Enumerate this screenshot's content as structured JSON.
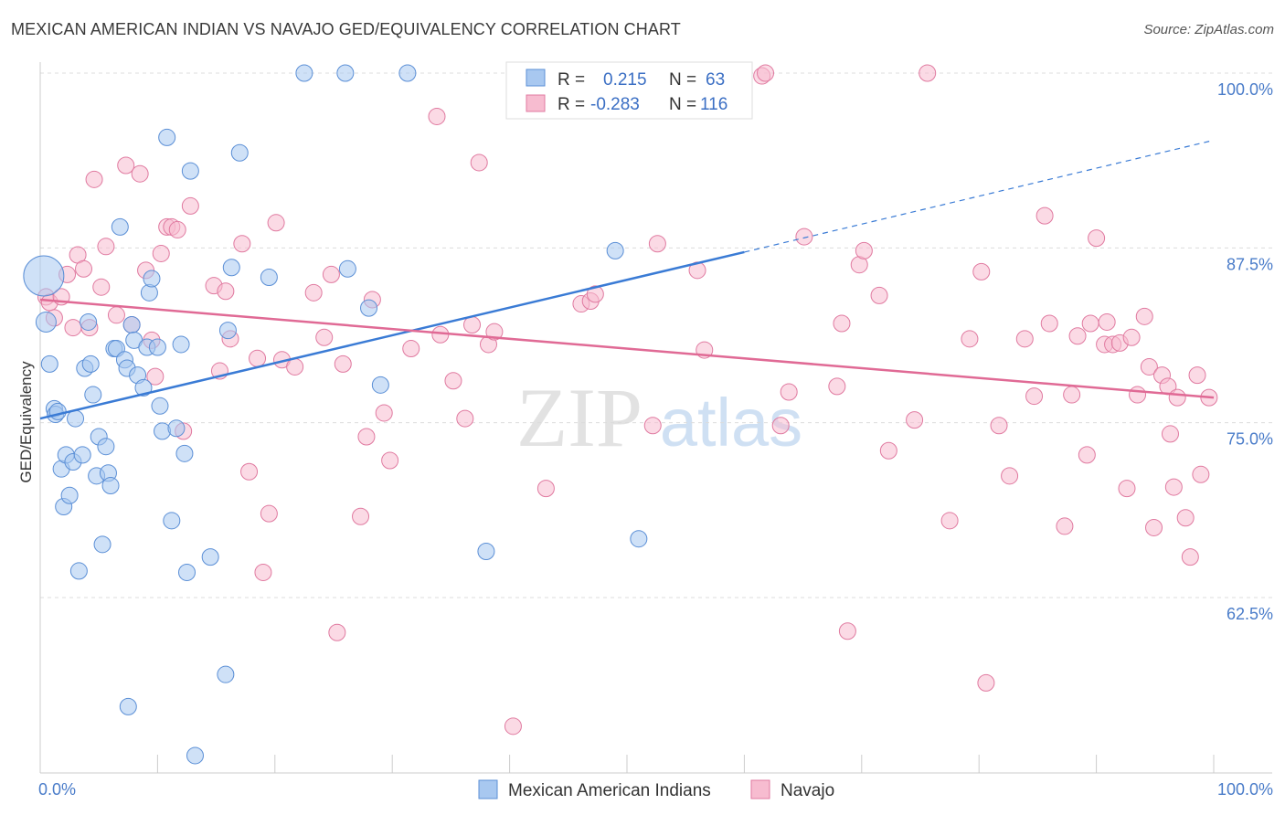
{
  "header": {
    "title": "MEXICAN AMERICAN INDIAN VS NAVAJO GED/EQUIVALENCY CORRELATION CHART",
    "source": "Source: ZipAtlas.com"
  },
  "watermark": {
    "zip": "ZIP",
    "atlas": "atlas"
  },
  "stats_legend": {
    "rows": [
      {
        "r_label": "R =",
        "r_value": "0.215",
        "n_label": "N =",
        "n_value": "63",
        "color": "#a8c8f0",
        "stroke": "#5b8fd6"
      },
      {
        "r_label": "R =",
        "r_value": "-0.283",
        "n_label": "N =",
        "n_value": "116",
        "color": "#f7bcd0",
        "stroke": "#e07aa0"
      }
    ]
  },
  "chart_data": {
    "type": "scatter",
    "title": "MEXICAN AMERICAN INDIAN VS NAVAJO GED/EQUIVALENCY CORRELATION CHART",
    "xlabel": "",
    "ylabel": "GED/Equivalency",
    "xlim": [
      0,
      100
    ],
    "ylim": [
      50,
      102
    ],
    "x_tick_labels": [
      "0.0%",
      "100.0%"
    ],
    "y_ticks": [
      62.5,
      75.0,
      87.5,
      100.0
    ],
    "y_tick_labels": [
      "62.5%",
      "75.0%",
      "87.5%",
      "100.0%"
    ],
    "grid": "horizontal-dashed",
    "legend_position": "bottom-center",
    "series": [
      {
        "name": "Mexican American Indians",
        "color": "#a8c8f0",
        "stroke": "#5b8fd6",
        "line_color": "#3a7bd5",
        "trend": {
          "x_start": 0,
          "y_start": 75.3,
          "x_solid_end": 60,
          "y_solid_end": 87.2,
          "x_dash_end": 100,
          "y_dash_end": 95.2
        },
        "points": [
          [
            0.3,
            85.5
          ],
          [
            0.5,
            82.2
          ],
          [
            0.8,
            79.2
          ],
          [
            1.2,
            76.0
          ],
          [
            1.3,
            75.6
          ],
          [
            1.5,
            75.8
          ],
          [
            1.8,
            71.7
          ],
          [
            2.0,
            69.0
          ],
          [
            2.2,
            72.7
          ],
          [
            2.5,
            69.8
          ],
          [
            2.8,
            72.2
          ],
          [
            3.0,
            75.3
          ],
          [
            3.3,
            64.4
          ],
          [
            3.6,
            72.7
          ],
          [
            3.8,
            78.9
          ],
          [
            4.1,
            82.2
          ],
          [
            4.3,
            79.2
          ],
          [
            4.5,
            77.0
          ],
          [
            4.8,
            71.2
          ],
          [
            5.0,
            74.0
          ],
          [
            5.3,
            66.3
          ],
          [
            5.6,
            73.3
          ],
          [
            5.8,
            71.4
          ],
          [
            6.0,
            70.5
          ],
          [
            6.3,
            80.3
          ],
          [
            6.5,
            80.3
          ],
          [
            6.8,
            89.0
          ],
          [
            7.2,
            79.5
          ],
          [
            7.4,
            78.9
          ],
          [
            7.8,
            82.0
          ],
          [
            8.0,
            80.9
          ],
          [
            8.3,
            78.4
          ],
          [
            8.8,
            77.5
          ],
          [
            9.1,
            80.4
          ],
          [
            9.3,
            84.3
          ],
          [
            9.5,
            85.3
          ],
          [
            10.0,
            80.4
          ],
          [
            10.2,
            76.2
          ],
          [
            10.4,
            74.4
          ],
          [
            10.8,
            95.4
          ],
          [
            11.2,
            68.0
          ],
          [
            11.6,
            74.6
          ],
          [
            12.0,
            80.6
          ],
          [
            12.3,
            72.8
          ],
          [
            12.5,
            64.3
          ],
          [
            12.8,
            93.0
          ],
          [
            13.2,
            51.2
          ],
          [
            14.5,
            65.4
          ],
          [
            15.8,
            57.0
          ],
          [
            16.0,
            81.6
          ],
          [
            16.3,
            86.1
          ],
          [
            17.0,
            94.3
          ],
          [
            19.5,
            85.4
          ],
          [
            22.5,
            100.0
          ],
          [
            26.0,
            100.0
          ],
          [
            26.2,
            86.0
          ],
          [
            28.0,
            83.2
          ],
          [
            29.0,
            77.7
          ],
          [
            31.3,
            100.0
          ],
          [
            38.0,
            65.8
          ],
          [
            49.0,
            87.3
          ],
          [
            51.0,
            66.7
          ],
          [
            7.5,
            54.7
          ]
        ]
      },
      {
        "name": "Navajo",
        "color": "#f7bcd0",
        "stroke": "#e07aa0",
        "line_color": "#e06a95",
        "trend": {
          "x_start": 0,
          "y_start": 83.8,
          "x_end": 100,
          "y_end": 76.8
        },
        "points": [
          [
            0.5,
            84.0
          ],
          [
            0.8,
            83.6
          ],
          [
            1.2,
            82.5
          ],
          [
            1.8,
            84.0
          ],
          [
            2.3,
            85.6
          ],
          [
            2.8,
            81.8
          ],
          [
            3.2,
            87.0
          ],
          [
            3.7,
            86.0
          ],
          [
            4.2,
            81.8
          ],
          [
            4.6,
            92.4
          ],
          [
            5.2,
            84.7
          ],
          [
            5.6,
            87.6
          ],
          [
            6.5,
            82.7
          ],
          [
            7.3,
            93.4
          ],
          [
            7.8,
            82.0
          ],
          [
            8.5,
            92.8
          ],
          [
            9.0,
            85.9
          ],
          [
            9.5,
            80.9
          ],
          [
            9.8,
            78.3
          ],
          [
            10.3,
            87.1
          ],
          [
            10.8,
            89.0
          ],
          [
            11.2,
            89.0
          ],
          [
            11.7,
            88.8
          ],
          [
            12.2,
            74.4
          ],
          [
            12.8,
            90.5
          ],
          [
            14.8,
            84.8
          ],
          [
            15.3,
            78.7
          ],
          [
            15.8,
            84.4
          ],
          [
            16.2,
            81.0
          ],
          [
            17.2,
            87.8
          ],
          [
            17.8,
            71.5
          ],
          [
            18.5,
            79.6
          ],
          [
            19.0,
            64.3
          ],
          [
            19.5,
            68.5
          ],
          [
            20.1,
            89.3
          ],
          [
            20.6,
            79.5
          ],
          [
            21.7,
            79.0
          ],
          [
            23.3,
            84.3
          ],
          [
            24.2,
            81.1
          ],
          [
            24.8,
            85.6
          ],
          [
            25.3,
            60.0
          ],
          [
            25.8,
            79.2
          ],
          [
            27.3,
            68.3
          ],
          [
            27.8,
            74.0
          ],
          [
            28.3,
            83.8
          ],
          [
            29.3,
            75.7
          ],
          [
            29.8,
            72.3
          ],
          [
            31.6,
            80.3
          ],
          [
            33.8,
            96.9
          ],
          [
            34.1,
            81.3
          ],
          [
            35.2,
            78.0
          ],
          [
            36.2,
            75.3
          ],
          [
            36.8,
            82.0
          ],
          [
            37.4,
            93.6
          ],
          [
            38.2,
            80.6
          ],
          [
            38.7,
            81.5
          ],
          [
            40.3,
            53.3
          ],
          [
            43.1,
            70.3
          ],
          [
            46.1,
            83.5
          ],
          [
            46.9,
            83.7
          ],
          [
            47.3,
            84.2
          ],
          [
            50.2,
            100.0
          ],
          [
            52.2,
            74.8
          ],
          [
            52.6,
            87.8
          ],
          [
            56.0,
            85.9
          ],
          [
            56.6,
            80.2
          ],
          [
            61.5,
            99.8
          ],
          [
            61.8,
            100.0
          ],
          [
            63.1,
            74.8
          ],
          [
            63.8,
            77.2
          ],
          [
            65.1,
            88.3
          ],
          [
            67.9,
            77.6
          ],
          [
            68.3,
            82.1
          ],
          [
            68.8,
            60.1
          ],
          [
            69.8,
            86.3
          ],
          [
            70.2,
            87.3
          ],
          [
            71.5,
            84.1
          ],
          [
            72.3,
            73.0
          ],
          [
            74.5,
            75.2
          ],
          [
            75.6,
            100.0
          ],
          [
            77.5,
            68.0
          ],
          [
            79.2,
            81.0
          ],
          [
            80.2,
            85.8
          ],
          [
            80.6,
            56.4
          ],
          [
            81.7,
            74.8
          ],
          [
            82.6,
            71.2
          ],
          [
            83.9,
            81.0
          ],
          [
            84.7,
            76.9
          ],
          [
            85.6,
            89.8
          ],
          [
            86.0,
            82.1
          ],
          [
            87.3,
            67.6
          ],
          [
            87.9,
            77.0
          ],
          [
            88.4,
            81.2
          ],
          [
            89.2,
            72.7
          ],
          [
            89.5,
            82.1
          ],
          [
            90.0,
            88.2
          ],
          [
            90.7,
            80.6
          ],
          [
            90.9,
            82.2
          ],
          [
            91.4,
            80.6
          ],
          [
            92.0,
            80.7
          ],
          [
            92.6,
            70.3
          ],
          [
            93.0,
            81.1
          ],
          [
            93.5,
            77.0
          ],
          [
            94.1,
            82.6
          ],
          [
            94.5,
            79.0
          ],
          [
            94.9,
            67.5
          ],
          [
            95.6,
            78.4
          ],
          [
            96.1,
            77.6
          ],
          [
            96.3,
            74.2
          ],
          [
            96.6,
            70.4
          ],
          [
            96.9,
            76.8
          ],
          [
            97.6,
            68.2
          ],
          [
            98.0,
            65.4
          ],
          [
            98.6,
            78.4
          ],
          [
            98.9,
            71.3
          ],
          [
            99.6,
            76.8
          ]
        ]
      }
    ]
  },
  "bottom_legend": {
    "items": [
      {
        "label": "Mexican American Indians",
        "color": "#a8c8f0",
        "stroke": "#5b8fd6"
      },
      {
        "label": "Navajo",
        "color": "#f7bcd0",
        "stroke": "#e07aa0"
      }
    ]
  }
}
